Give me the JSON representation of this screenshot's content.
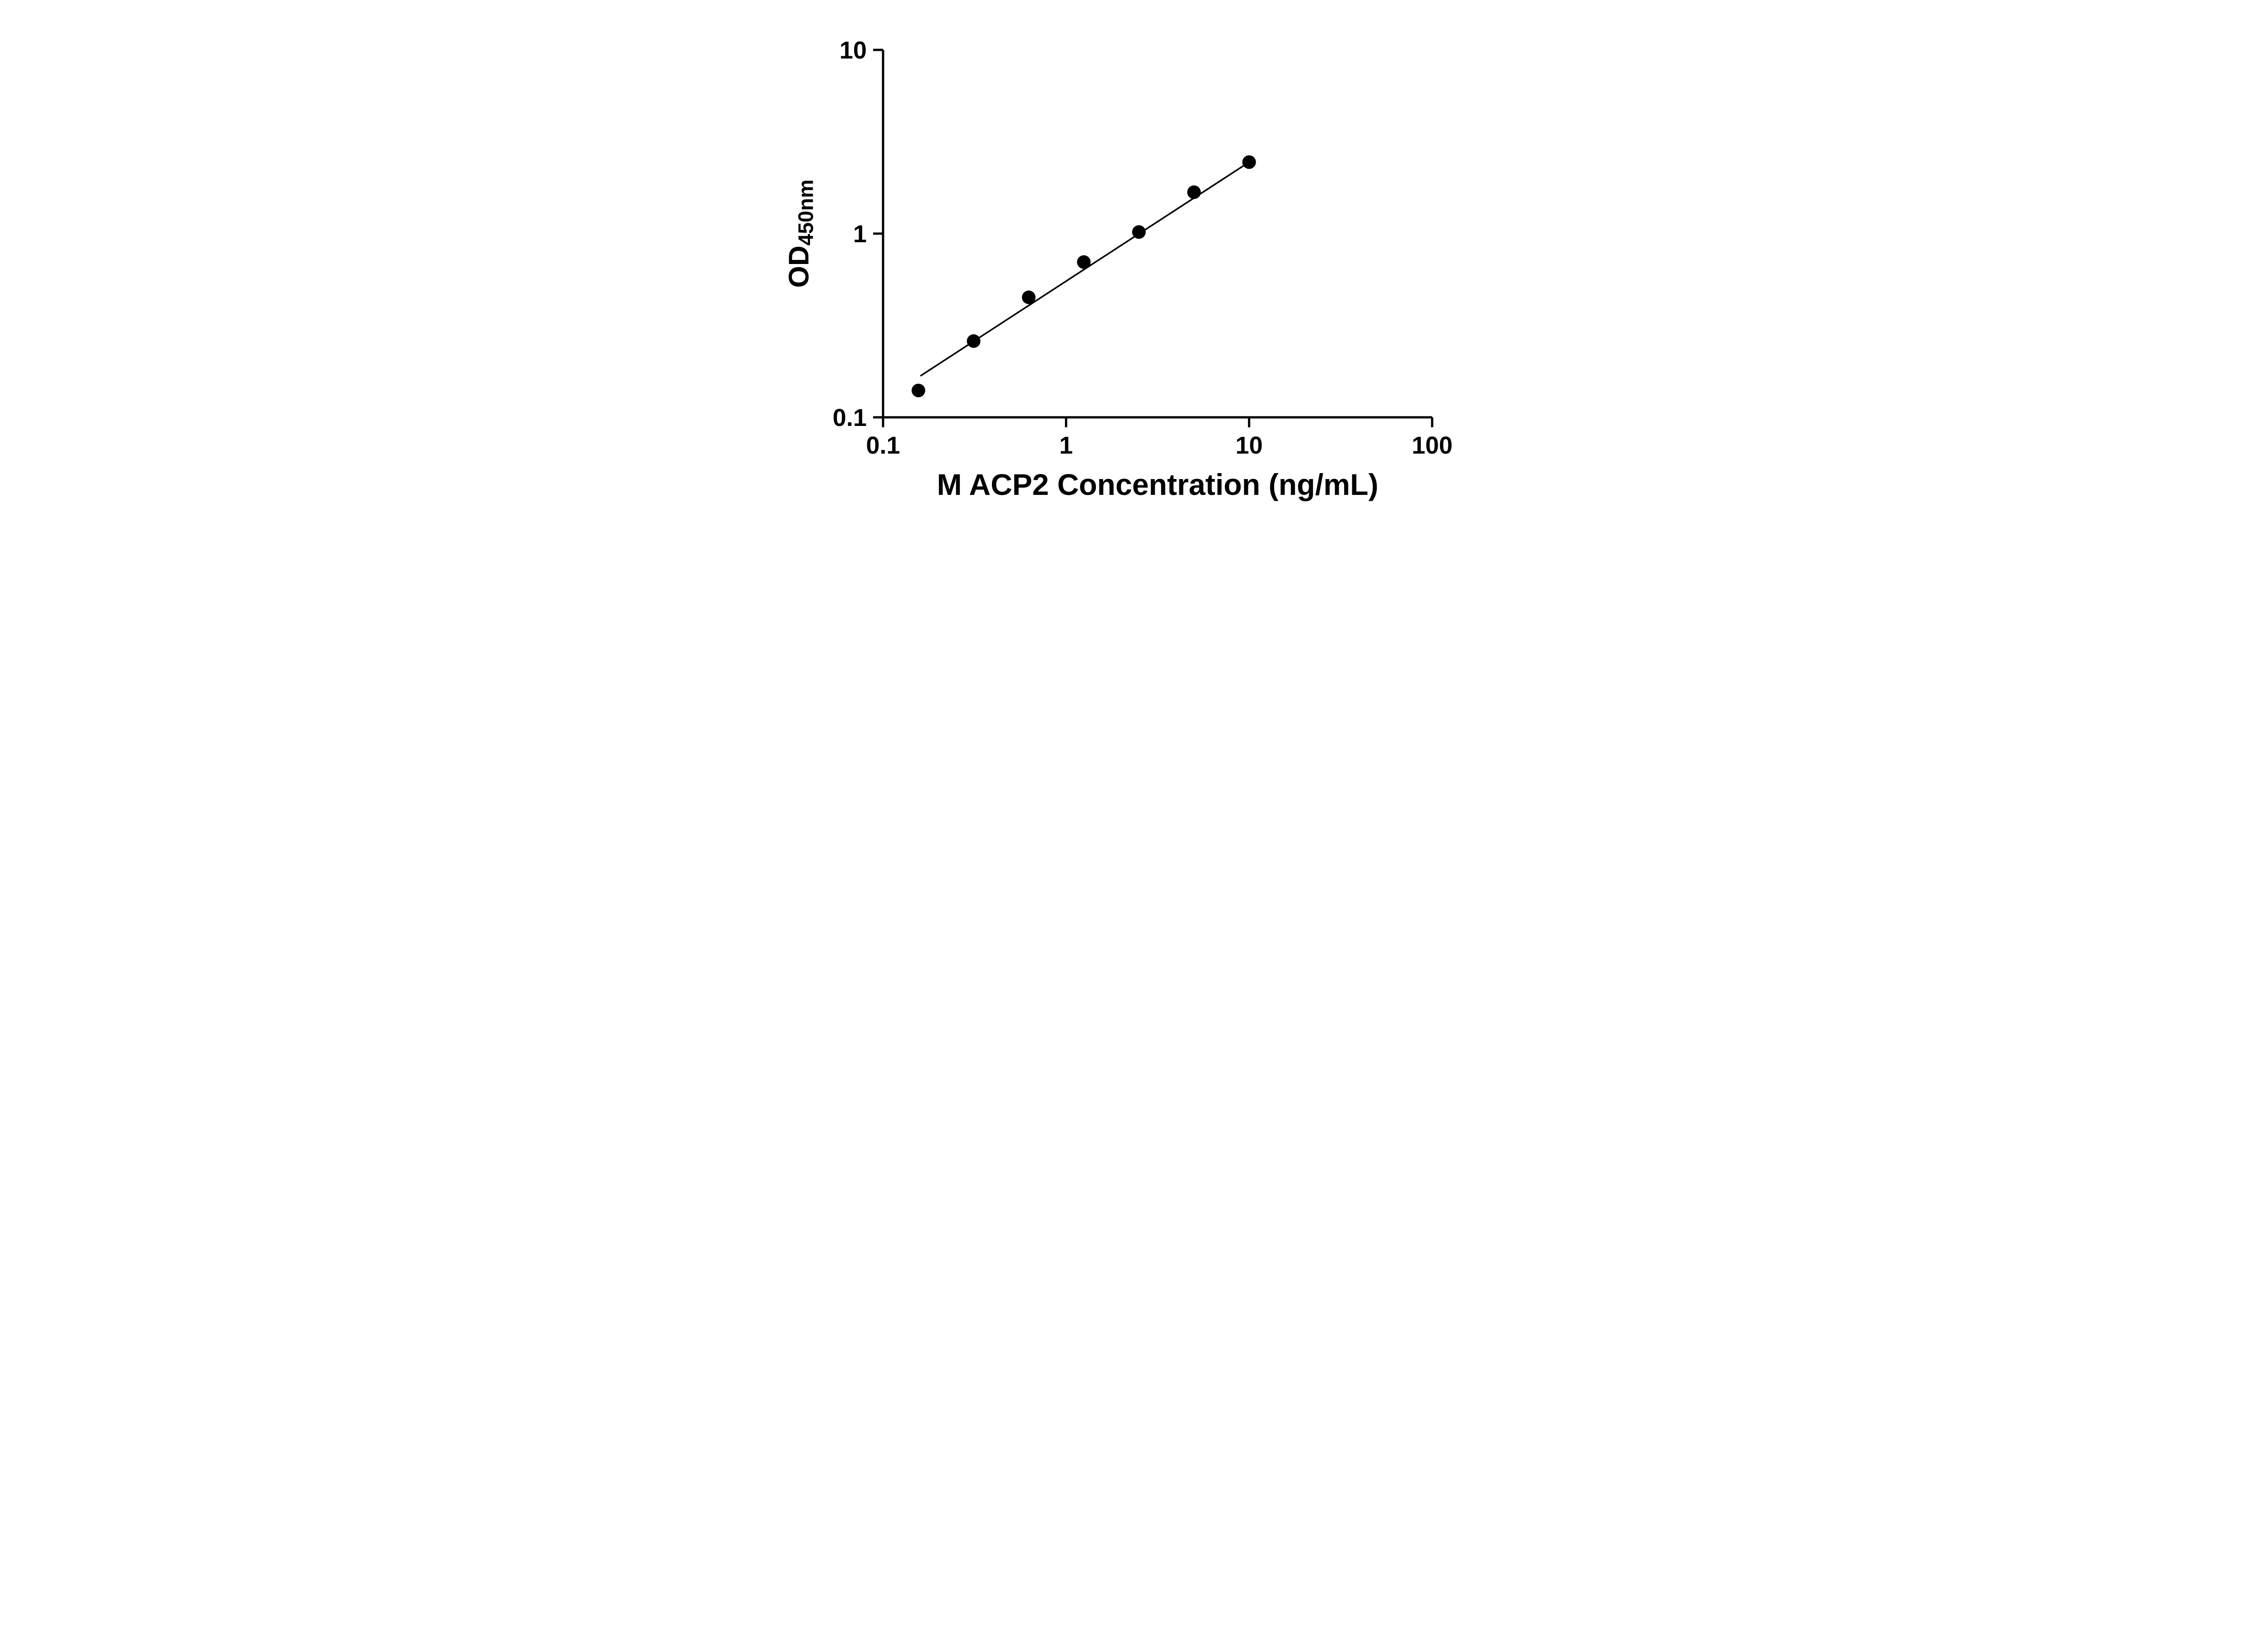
{
  "chart_data": {
    "type": "scatter",
    "title": "",
    "xlabel": "M ACP2 Concentration (ng/mL)",
    "ylabel_main": "OD",
    "ylabel_sub": "450nm",
    "x_scale": "log",
    "y_scale": "log",
    "xlim": [
      0.1,
      100
    ],
    "ylim": [
      0.1,
      10
    ],
    "grid": false,
    "legend": "none",
    "x_ticks": [
      0.1,
      1,
      10,
      100
    ],
    "x_tick_labels": [
      "0.1",
      "1",
      "10",
      "100"
    ],
    "y_ticks": [
      0.1,
      1,
      10
    ],
    "y_tick_labels": [
      "0.1",
      "1",
      "10"
    ],
    "points": [
      {
        "x": 0.156,
        "y": 0.14
      },
      {
        "x": 0.3125,
        "y": 0.26
      },
      {
        "x": 0.625,
        "y": 0.45
      },
      {
        "x": 1.25,
        "y": 0.7
      },
      {
        "x": 2.5,
        "y": 1.02
      },
      {
        "x": 5,
        "y": 1.68
      },
      {
        "x": 10,
        "y": 2.45
      }
    ],
    "fit_line": {
      "x1": 0.16,
      "y1": 0.168,
      "x2": 10,
      "y2": 2.45
    },
    "marker_color": "#000000",
    "line_color": "#000000",
    "axis_color": "#000000",
    "background": "#ffffff"
  }
}
